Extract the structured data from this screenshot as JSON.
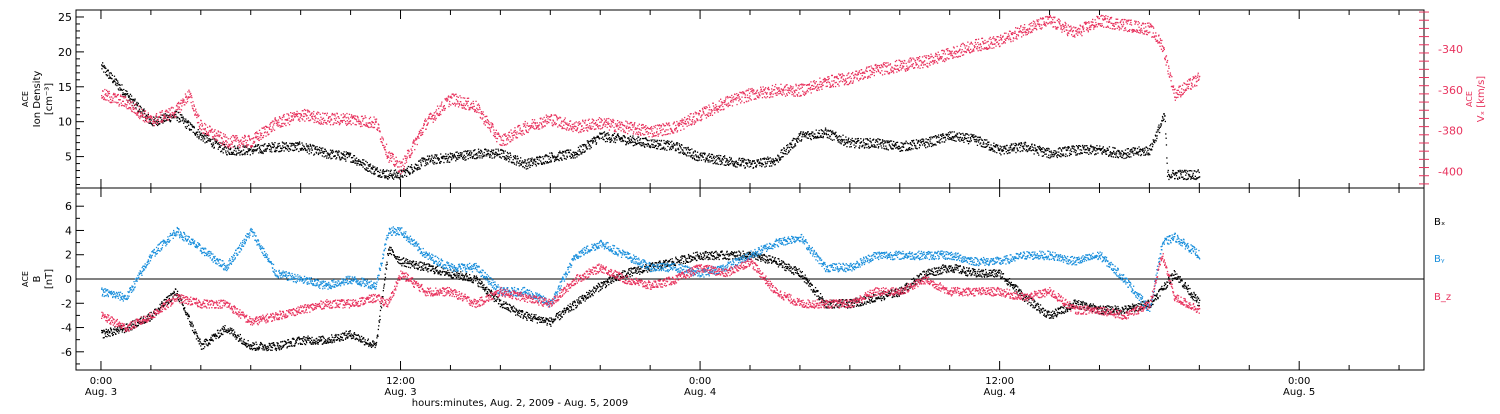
{
  "colors": {
    "black": "#000000",
    "blue": "#1a8fdc",
    "red": "#e8335e",
    "axis_right": "#e8335e"
  },
  "x_axis": {
    "title": "hours:minutes, Aug.  2, 2009 - Aug.  5, 2009",
    "ticks": [
      {
        "hour": 0,
        "time": "0:00",
        "day": "Aug. 3"
      },
      {
        "hour": 12,
        "time": "12:00",
        "day": "Aug. 3"
      },
      {
        "hour": 24,
        "time": "0:00",
        "day": "Aug. 4"
      },
      {
        "hour": 36,
        "time": "12:00",
        "day": "Aug. 4"
      },
      {
        "hour": 48,
        "time": "0:00",
        "day": "Aug. 5"
      }
    ],
    "range_hours": [
      -1,
      53
    ]
  },
  "panel_top": {
    "ylabel_left_lines": [
      "ACE",
      "Ion Density",
      "[cm⁻³]"
    ],
    "ylabel_right_lines": [
      "ACE",
      "Vₓ [km/s]"
    ],
    "left_ticks": [
      "5",
      "10",
      "15",
      "20",
      "25"
    ],
    "right_ticks": [
      "-340",
      "-360",
      "-380",
      "-400"
    ]
  },
  "panel_bottom": {
    "ylabel_left_lines": [
      "ACE",
      "B",
      "[nT]"
    ],
    "left_ticks": [
      "-6",
      "-4",
      "-2",
      "0",
      "2",
      "4",
      "6"
    ],
    "legend": [
      "Bₓ",
      "Bᵧ",
      "B_z"
    ]
  },
  "chart_data": [
    {
      "type": "scatter",
      "xlabel": "hours:minutes, Aug.  2, 2009 - Aug.  5, 2009",
      "ylabel": "ACE Ion Density [cm⁻³]",
      "y2label": "ACE Vₓ [km/s]",
      "ylim": [
        0.5,
        26
      ],
      "y2lim": [
        -408,
        -321
      ],
      "series": [
        {
          "name": "Ion Density",
          "color": "black",
          "axis": "left",
          "x": [
            0,
            1,
            2,
            3,
            4,
            5,
            6,
            7,
            8,
            9,
            10,
            11,
            11.5,
            12,
            13,
            14,
            15,
            16,
            17,
            18,
            19,
            20,
            21,
            22,
            23,
            24,
            25,
            26,
            27,
            28,
            29,
            30,
            31,
            32,
            33,
            34,
            35,
            36,
            37,
            38,
            39,
            40,
            41,
            42,
            42.6,
            42.7,
            44
          ],
          "y": [
            18,
            14,
            10,
            11,
            8,
            6,
            6,
            6.5,
            6.5,
            5.5,
            5,
            3,
            2.5,
            2.5,
            4.5,
            5,
            5.5,
            5.5,
            4,
            5,
            5.5,
            8,
            7.5,
            7,
            6.5,
            5,
            4.5,
            4,
            4.5,
            8,
            8.5,
            7,
            7,
            6.5,
            7,
            8,
            7.5,
            6,
            6.5,
            5.5,
            6,
            6,
            5.5,
            6,
            11,
            2.5,
            2.5
          ]
        },
        {
          "name": "Vx",
          "color": "red",
          "axis": "right",
          "x": [
            0,
            1,
            2,
            3,
            3.5,
            4,
            5,
            6,
            7,
            8,
            9,
            10,
            11,
            11.5,
            12,
            13,
            14,
            15,
            16,
            17,
            18,
            19,
            20,
            21,
            22,
            23,
            24,
            25,
            26,
            27,
            28,
            29,
            30,
            31,
            32,
            33,
            34,
            35,
            36,
            37,
            38,
            39,
            40,
            41,
            42,
            42.5,
            43,
            44
          ],
          "y": [
            -362,
            -366,
            -375,
            -370,
            -362,
            -378,
            -385,
            -385,
            -376,
            -372,
            -374,
            -374,
            -376,
            -392,
            -398,
            -376,
            -364,
            -368,
            -385,
            -378,
            -374,
            -378,
            -376,
            -378,
            -380,
            -378,
            -372,
            -366,
            -362,
            -360,
            -360,
            -356,
            -354,
            -350,
            -348,
            -346,
            -342,
            -338,
            -336,
            -330,
            -326,
            -332,
            -326,
            -328,
            -330,
            -338,
            -362,
            -354
          ]
        }
      ]
    },
    {
      "type": "scatter",
      "xlabel": "hours:minutes, Aug.  2, 2009 - Aug.  5, 2009",
      "ylabel": "ACE B [nT]",
      "ylim": [
        -7.5,
        7.5
      ],
      "series": [
        {
          "name": "Bₓ",
          "color": "black",
          "x": [
            0,
            1,
            2,
            3,
            4,
            5,
            6,
            7,
            8,
            9,
            10,
            11,
            11.5,
            12,
            13,
            14,
            15,
            16,
            17,
            18,
            19,
            20,
            21,
            22,
            23,
            24,
            25,
            26,
            27,
            28,
            29,
            30,
            31,
            32,
            33,
            34,
            35,
            36,
            37,
            38,
            39,
            40,
            41,
            42,
            43,
            44
          ],
          "y": [
            -4.5,
            -4,
            -3,
            -1,
            -5.5,
            -4,
            -5.5,
            -5.5,
            -5,
            -5,
            -4.5,
            -5.5,
            2.5,
            1.5,
            1,
            0.5,
            0,
            -2,
            -3,
            -3.5,
            -2,
            -0.5,
            0.5,
            1,
            1.5,
            2,
            2,
            2,
            1.5,
            0.5,
            -2,
            -2,
            -1.5,
            -1,
            0.5,
            1,
            0.5,
            0.5,
            -1.5,
            -3,
            -2,
            -2.5,
            -2.5,
            -2,
            0.5,
            -2
          ]
        },
        {
          "name": "Bᵧ",
          "color": "blue",
          "x": [
            0,
            1,
            2,
            3,
            4,
            5,
            6,
            7,
            8,
            9,
            10,
            11,
            11.5,
            12,
            13,
            14,
            15,
            16,
            17,
            18,
            19,
            20,
            21,
            22,
            23,
            24,
            25,
            26,
            27,
            28,
            29,
            30,
            31,
            32,
            33,
            34,
            35,
            36,
            37,
            38,
            39,
            40,
            41,
            42,
            42.5,
            43,
            44
          ],
          "y": [
            -1,
            -1.5,
            2,
            4,
            2.5,
            1,
            4,
            0.5,
            0,
            -0.5,
            0,
            -0.5,
            4,
            4,
            2,
            1,
            1,
            -1,
            -1,
            -2,
            2,
            3,
            2,
            1,
            1,
            0.5,
            1,
            2,
            3,
            3.5,
            1,
            1,
            2,
            2,
            2,
            2,
            1.5,
            1.5,
            2,
            2,
            1.5,
            2,
            0,
            -2.5,
            3,
            3.5,
            2
          ]
        },
        {
          "name": "B_z",
          "color": "red",
          "x": [
            0,
            1,
            2,
            3,
            4,
            5,
            6,
            7,
            8,
            9,
            10,
            11,
            11.5,
            12,
            13,
            14,
            15,
            16,
            17,
            18,
            19,
            20,
            21,
            22,
            23,
            24,
            25,
            26,
            27,
            28,
            29,
            30,
            31,
            32,
            33,
            34,
            35,
            36,
            37,
            38,
            39,
            40,
            41,
            42,
            42.5,
            43,
            44
          ],
          "y": [
            -3,
            -4,
            -3,
            -1.5,
            -2,
            -2,
            -3.5,
            -3,
            -2.5,
            -2,
            -2,
            -1.5,
            -2,
            0.5,
            -1,
            -1,
            -2,
            -1,
            -1.5,
            -2,
            0,
            1,
            0,
            -0.5,
            0,
            1,
            0.5,
            1.5,
            -1,
            -2,
            -2,
            -2,
            -1,
            -1,
            0,
            -1,
            -1,
            -1,
            -1.5,
            -1,
            -2.5,
            -2.5,
            -3,
            -2,
            2,
            -1.5,
            -2.5
          ]
        }
      ]
    }
  ]
}
